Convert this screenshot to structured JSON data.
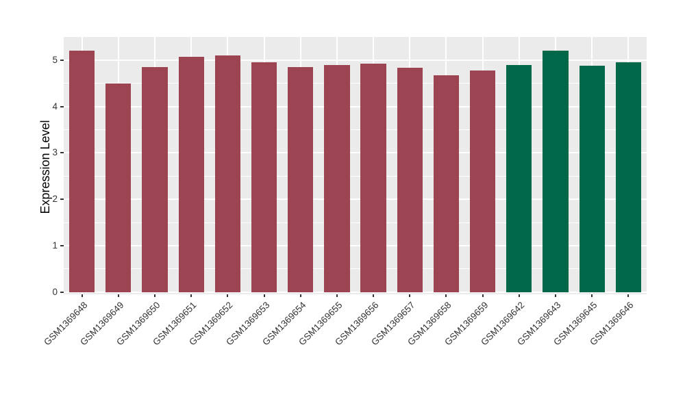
{
  "chart_data": {
    "type": "bar",
    "title": "",
    "xlabel": "",
    "ylabel": "Expression Level",
    "categories": [
      "GSM1369648",
      "GSM1369649",
      "GSM1369650",
      "GSM1369651",
      "GSM1369652",
      "GSM1369653",
      "GSM1369654",
      "GSM1369655",
      "GSM1369656",
      "GSM1369657",
      "GSM1369658",
      "GSM1369659",
      "GSM1369642",
      "GSM1369643",
      "GSM1369645",
      "GSM1369646"
    ],
    "values": [
      5.2,
      4.5,
      4.85,
      5.07,
      5.1,
      4.95,
      4.85,
      4.9,
      4.93,
      4.83,
      4.68,
      4.78,
      4.9,
      5.21,
      4.88,
      4.96
    ],
    "bar_colors": [
      "#9C4452",
      "#9C4452",
      "#9C4452",
      "#9C4452",
      "#9C4452",
      "#9C4452",
      "#9C4452",
      "#9C4452",
      "#9C4452",
      "#9C4452",
      "#9C4452",
      "#9C4452",
      "#006849",
      "#006849",
      "#006849",
      "#006849"
    ],
    "palette": {
      "maroon_group": "#9C4452",
      "green_group": "#006849"
    },
    "ylim": [
      -0.05,
      5.5
    ],
    "y_ticks": [
      0,
      1,
      2,
      3,
      4,
      5
    ],
    "y_minor_ticks": [
      0.5,
      1.5,
      2.5,
      3.5,
      4.5
    ],
    "grid": "major-and-minor, white on gray panel",
    "legend": "none",
    "panel_bg": "#EBEBEB",
    "grid_color": "#FFFFFF",
    "tick_text_color": "#333333",
    "bar_width_fraction": 0.7
  }
}
